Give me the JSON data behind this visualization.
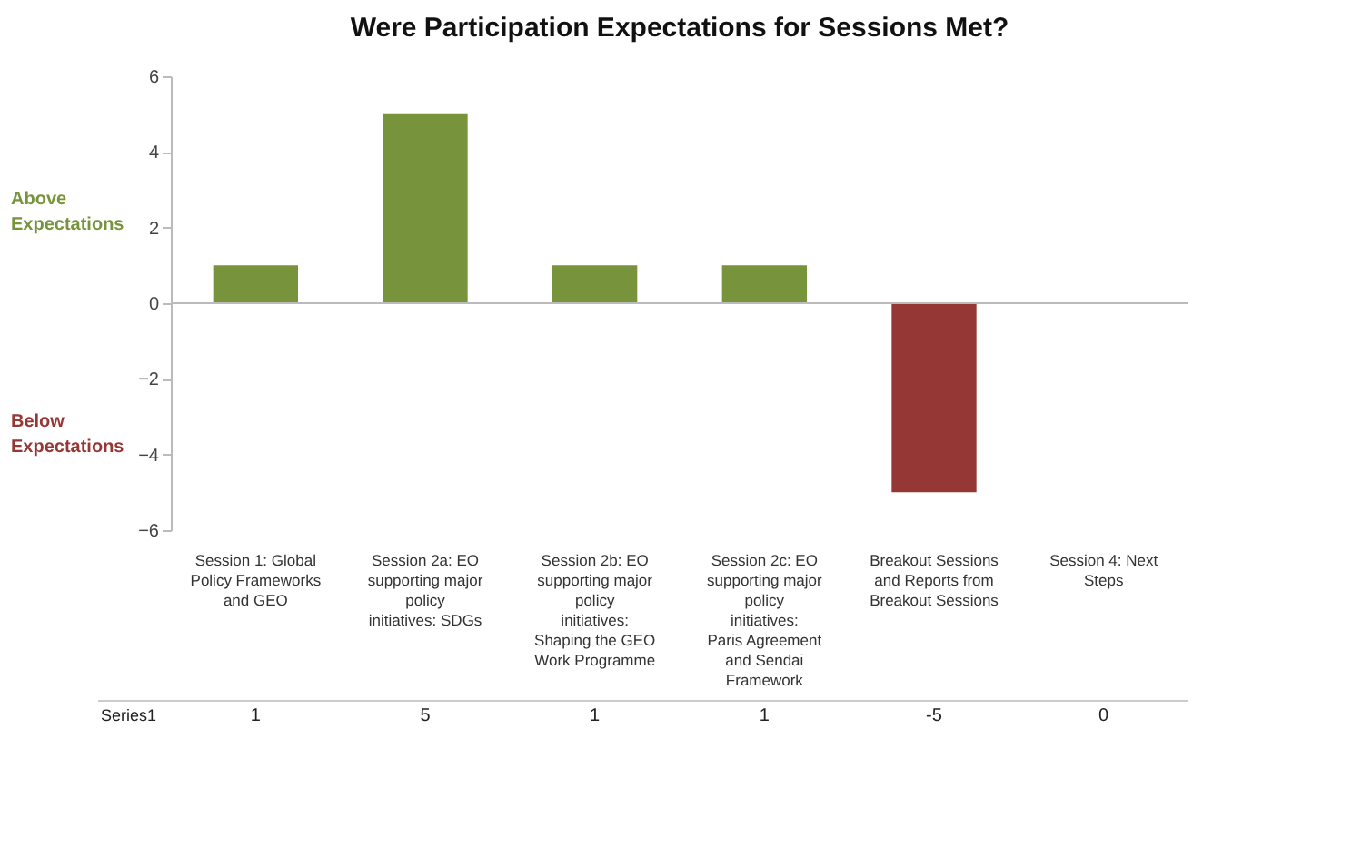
{
  "chart_data": {
    "type": "bar",
    "title": "Were Participation Expectations for Sessions Met?",
    "categories": [
      "Session 1: Global Policy Frameworks and GEO",
      "Session 2a: EO supporting major policy initiatives: SDGs",
      "Session 2b: EO supporting major policy initiatives: Shaping the GEO Work Programme",
      "Session 2c: EO supporting major policy initiatives: Paris Agreement and Sendai Framework",
      "Breakout Sessions and Reports from Breakout Sessions",
      "Session 4: Next Steps"
    ],
    "series": [
      {
        "name": "Series1",
        "values": [
          1,
          5,
          1,
          1,
          -5,
          0
        ]
      }
    ],
    "colors": [
      "#77933c",
      "#77933c",
      "#77933c",
      "#77933c",
      "#953735",
      "#77933c"
    ],
    "ylim": [
      -6,
      6
    ],
    "yticks": [
      -6,
      -4,
      -2,
      0,
      2,
      4,
      6
    ],
    "ref_lines": [
      {
        "axis": "y",
        "value": 0
      }
    ],
    "annotations": [
      "Above Expectations",
      "Below Expectations"
    ],
    "data_labels": true
  }
}
